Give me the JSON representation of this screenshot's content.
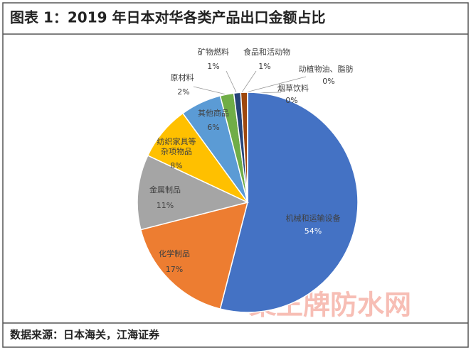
{
  "title": "图表 1：2019 年日本对华各类产品出口金额占比",
  "source": "数据来源：日本海关，江海证券",
  "watermark": "聚王牌防水网",
  "chart_data": {
    "type": "pie",
    "categories": [
      "机械和运输设备",
      "化学制品",
      "金属制品",
      "纺织家具等杂项物品",
      "其他商品",
      "原材料",
      "矿物燃料",
      "食品和活动物",
      "动植物油、脂肪",
      "烟草饮料"
    ],
    "values": [
      54,
      17,
      11,
      8,
      6,
      2,
      1,
      1,
      0,
      0
    ],
    "value_labels": [
      "54%",
      "17%",
      "11%",
      "8%",
      "6%",
      "2%",
      "1%",
      "1%",
      "0%",
      "0%"
    ],
    "colors": [
      "#4472c4",
      "#ed7d31",
      "#a5a5a5",
      "#ffc000",
      "#5b9bd5",
      "#70ad47",
      "#264478",
      "#9e480e",
      "#636363",
      "#997300"
    ]
  }
}
